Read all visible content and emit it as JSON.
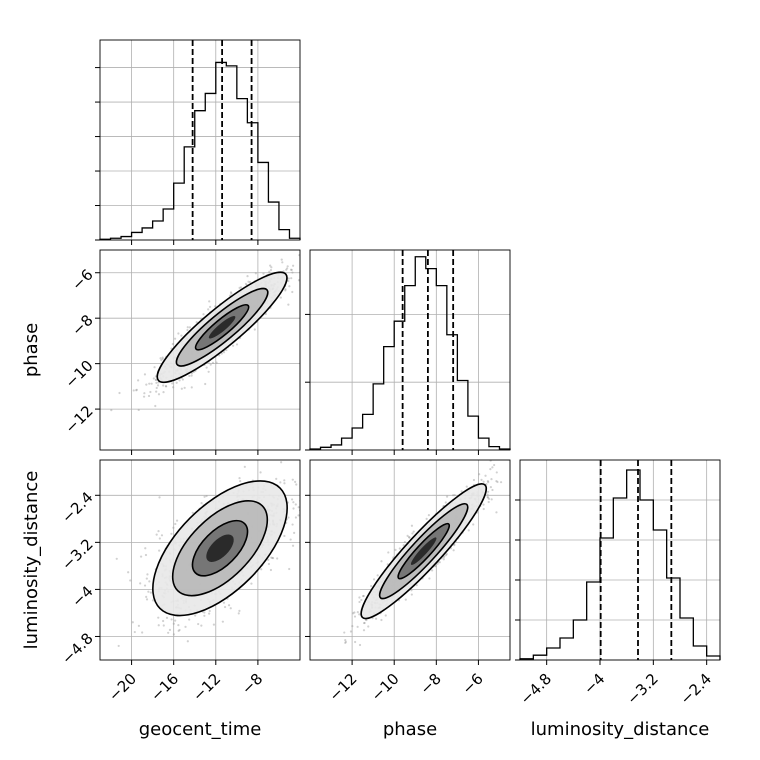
{
  "chart_data": {
    "type": "corner",
    "parameters": [
      "geocent_time",
      "phase",
      "luminosity_distance"
    ],
    "grid": true,
    "panels": [
      {
        "kind": "hist",
        "row": 0,
        "col": 0,
        "xlim": [
          -23,
          -4
        ],
        "x_bin_edges": [
          -23,
          -22,
          -21,
          -20,
          -19,
          -18,
          -17,
          -16,
          -15,
          -14,
          -13,
          -12,
          -11,
          -10,
          -9,
          -8,
          -7,
          -6,
          -5,
          -4
        ],
        "counts": [
          0.2,
          0.5,
          1.0,
          2.2,
          3.5,
          5.5,
          9.0,
          16.5,
          27,
          37.5,
          42.5,
          51.5,
          50.5,
          41,
          34,
          22.5,
          11,
          3,
          0.5
        ],
        "ymax": 58,
        "y_ticks": [
          0,
          10,
          20,
          30,
          40,
          50
        ],
        "quantiles": [
          -14.2,
          -11.4,
          -8.6
        ]
      },
      {
        "kind": "2d",
        "row": 1,
        "col": 0,
        "xlim": [
          -23,
          -4
        ],
        "ylim": [
          -13.8,
          -5.0
        ],
        "x_ticks": [
          -20,
          -16,
          -12,
          -8
        ],
        "y_ticks": [
          -12,
          -10,
          -8,
          -6
        ],
        "center": [
          -11.4,
          -8.4
        ],
        "sd": [
          2.8,
          1.1
        ],
        "rho": 0.9,
        "ylabel": "phase"
      },
      {
        "kind": "hist",
        "row": 1,
        "col": 1,
        "xlim": [
          -14,
          -4.5
        ],
        "x_bin_edges": [
          -14,
          -13.5,
          -13,
          -12.5,
          -12,
          -11.5,
          -11,
          -10.5,
          -10,
          -9.5,
          -9,
          -8.5,
          -8,
          -7.5,
          -7,
          -6.5,
          -6,
          -5.5,
          -5,
          -4.5
        ],
        "counts": [
          0.3,
          0.8,
          1.5,
          3.5,
          6.5,
          10.5,
          19.5,
          30.5,
          38,
          48.5,
          57,
          53.5,
          48.5,
          34,
          20.5,
          10,
          3.5,
          1.0,
          0.3
        ],
        "ymax": 59,
        "y_ticks": [
          0,
          20,
          40
        ],
        "quantiles": [
          -9.6,
          -8.4,
          -7.2
        ]
      },
      {
        "kind": "2d",
        "row": 2,
        "col": 0,
        "xlim": [
          -23,
          -4
        ],
        "ylim": [
          -5.2,
          -1.8
        ],
        "x_ticks": [
          -20,
          -16,
          -12,
          -8
        ],
        "y_ticks": [
          -4.8,
          -4.0,
          -3.2,
          -2.4
        ],
        "center": [
          -11.6,
          -3.3
        ],
        "sd": [
          2.9,
          0.52
        ],
        "rho": 0.6,
        "xlabel": "geocent_time",
        "ylabel": "luminosity_distance"
      },
      {
        "kind": "2d",
        "row": 2,
        "col": 1,
        "xlim": [
          -14,
          -4.5
        ],
        "ylim": [
          -5.2,
          -1.8
        ],
        "x_ticks": [
          -12,
          -10,
          -8,
          -6
        ],
        "y_ticks": [
          -4.8,
          -4.0,
          -3.2,
          -2.4
        ],
        "center": [
          -8.6,
          -3.35
        ],
        "sd": [
          1.35,
          0.52
        ],
        "rho": 0.93,
        "xlabel": "phase"
      },
      {
        "kind": "hist",
        "row": 2,
        "col": 2,
        "xlim": [
          -5.2,
          -2.2
        ],
        "x_bin_edges": [
          -5.2,
          -5.0,
          -4.8,
          -4.6,
          -4.4,
          -4.2,
          -4.0,
          -3.8,
          -3.6,
          -3.4,
          -3.2,
          -3.0,
          -2.8,
          -2.6,
          -2.4,
          -2.2
        ],
        "counts": [
          0.3,
          1.2,
          3.0,
          5.5,
          10.0,
          19.5,
          30.5,
          40.5,
          47.5,
          40.0,
          32.5,
          20.5,
          10.5,
          3.5,
          1.0
        ],
        "ymax": 50,
        "y_ticks": [
          0,
          10,
          20,
          30,
          40
        ],
        "quantiles": [
          -3.99,
          -3.43,
          -2.93
        ],
        "x_ticks": [
          -4.8,
          -4.0,
          -3.2,
          -2.4
        ],
        "xlabel": "luminosity_distance"
      }
    ]
  }
}
